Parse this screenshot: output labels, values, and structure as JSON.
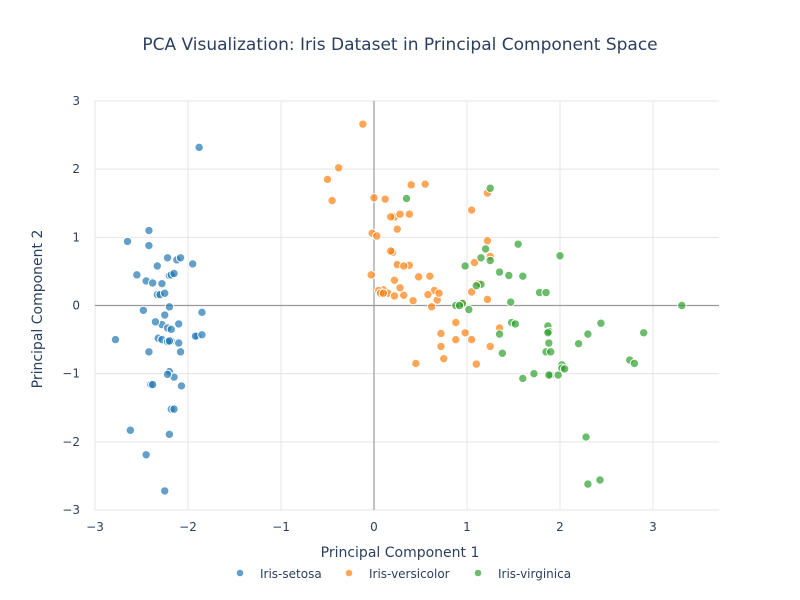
{
  "chart_data": {
    "type": "scatter",
    "title": "PCA Visualization: Iris Dataset in Principal Component Space",
    "xlabel": "Principal Component 1",
    "ylabel": "Principal Component 2",
    "xlim": [
      -3.15,
      3.7
    ],
    "ylim": [
      -3.05,
      3.05
    ],
    "x_ticks": [
      -3,
      -2,
      -1,
      0,
      1,
      2,
      3
    ],
    "y_ticks": [
      -3,
      -2,
      -1,
      0,
      1,
      2,
      3
    ],
    "x_tick_labels": [
      "−3",
      "−2",
      "−1",
      "0",
      "1",
      "2",
      "3"
    ],
    "y_tick_labels": [
      "−3",
      "−2",
      "−1",
      "0",
      "1",
      "2",
      "3"
    ],
    "grid": true,
    "legend_position": "bottom",
    "series": [
      {
        "name": "Iris-setosa",
        "color": "#1f77b4",
        "x": [
          -1.88,
          -2.65,
          -2.55,
          -2.42,
          -2.33,
          -2.28,
          -2.22,
          -2.12,
          -2.08,
          -2.45,
          -1.95,
          -2.42,
          -2.38,
          -2.33,
          -2.3,
          -2.25,
          -2.2,
          -2.18,
          -2.15,
          -2.48,
          -2.2,
          -2.25,
          -2.28,
          -2.35,
          -2.1,
          -1.85,
          -1.9,
          -2.22,
          -2.18,
          -2.42,
          -2.1,
          -2.78,
          -1.92,
          -1.85,
          -2.32,
          -2.28,
          -2.22,
          -2.2,
          -2.15,
          -2.4,
          -2.38,
          -2.07,
          -2.22,
          -2.18,
          -2.15,
          -2.62,
          -2.2,
          -2.45,
          -2.25,
          -2.2,
          -2.08,
          -2.18
        ],
        "y": [
          2.32,
          0.94,
          0.45,
          0.88,
          0.58,
          0.32,
          0.7,
          0.67,
          0.7,
          0.36,
          0.61,
          1.1,
          0.33,
          0.16,
          0.16,
          0.18,
          0.44,
          0.45,
          0.47,
          -0.07,
          -0.02,
          -0.14,
          -0.28,
          -0.24,
          -0.27,
          -0.1,
          -0.45,
          -0.33,
          -0.52,
          -0.68,
          -0.55,
          -0.5,
          -0.45,
          -0.43,
          -0.48,
          -0.5,
          -0.53,
          -0.97,
          -1.05,
          -1.16,
          -1.16,
          -1.18,
          -1.01,
          -1.52,
          -1.52,
          -1.83,
          -1.89,
          -2.19,
          -2.72,
          -0.52,
          -0.68,
          -0.35
        ]
      },
      {
        "name": "Iris-versicolor",
        "color": "#ff7f0e",
        "x": [
          -0.12,
          -0.38,
          -0.5,
          -0.45,
          0.0,
          0.12,
          0.22,
          0.18,
          0.28,
          0.38,
          0.55,
          1.05,
          1.22,
          -0.02,
          0.03,
          0.1,
          0.15,
          0.22,
          0.28,
          0.32,
          0.22,
          0.2,
          0.25,
          0.38,
          0.48,
          0.6,
          0.65,
          0.05,
          0.07,
          0.1,
          0.18,
          0.32,
          0.42,
          0.58,
          0.68,
          0.7,
          1.22,
          1.08,
          1.05,
          1.12,
          1.22,
          1.25,
          0.62,
          0.88,
          0.72,
          0.72,
          0.88,
          0.98,
          1.05,
          1.25,
          1.35,
          0.75,
          0.45,
          1.1,
          0.95,
          -0.03,
          0.4,
          0.25
        ],
        "y": [
          2.66,
          2.02,
          1.85,
          1.54,
          1.58,
          1.56,
          1.3,
          1.3,
          1.34,
          1.34,
          1.78,
          1.4,
          1.65,
          1.06,
          1.02,
          0.23,
          0.18,
          0.14,
          0.26,
          0.15,
          0.37,
          0.78,
          0.6,
          0.59,
          0.42,
          0.43,
          0.22,
          0.22,
          0.18,
          0.18,
          0.8,
          0.58,
          0.07,
          0.16,
          0.08,
          0.18,
          0.95,
          0.63,
          0.2,
          0.32,
          0.09,
          0.72,
          -0.02,
          -0.25,
          -0.41,
          -0.6,
          -0.5,
          -0.4,
          -0.5,
          -0.6,
          -0.33,
          -0.78,
          -0.85,
          -0.86,
          0.04,
          0.45,
          1.77,
          1.12
        ]
      },
      {
        "name": "Iris-virginica",
        "color": "#2ca02c",
        "x": [
          1.25,
          0.35,
          1.2,
          1.25,
          1.15,
          1.15,
          1.1,
          0.98,
          0.95,
          1.02,
          1.55,
          1.35,
          1.45,
          1.6,
          1.47,
          1.78,
          1.85,
          2.0,
          3.31,
          2.9,
          2.44,
          2.3,
          1.87,
          1.88,
          1.88,
          1.85,
          1.9,
          1.87,
          1.9,
          2.2,
          2.02,
          2.02,
          2.05,
          2.75,
          2.8,
          1.35,
          1.38,
          1.48,
          1.52,
          1.6,
          1.72,
          1.88,
          1.98,
          2.28,
          2.3,
          2.43,
          0.88,
          0.92
        ],
        "y": [
          1.72,
          1.57,
          0.83,
          0.66,
          0.7,
          0.31,
          0.29,
          0.58,
          0.03,
          -0.06,
          0.9,
          0.49,
          0.44,
          0.43,
          0.05,
          0.19,
          0.19,
          0.73,
          0.0,
          -0.4,
          -0.26,
          -0.42,
          -0.3,
          -0.38,
          -0.55,
          -0.68,
          -0.68,
          -0.4,
          -1.02,
          -0.56,
          -0.87,
          -0.92,
          -0.93,
          -0.8,
          -0.85,
          -0.42,
          -0.7,
          -0.25,
          -0.27,
          -1.07,
          -1.0,
          -1.02,
          -1.02,
          -1.93,
          -2.62,
          -2.56,
          0.0,
          0.0
        ]
      }
    ]
  }
}
